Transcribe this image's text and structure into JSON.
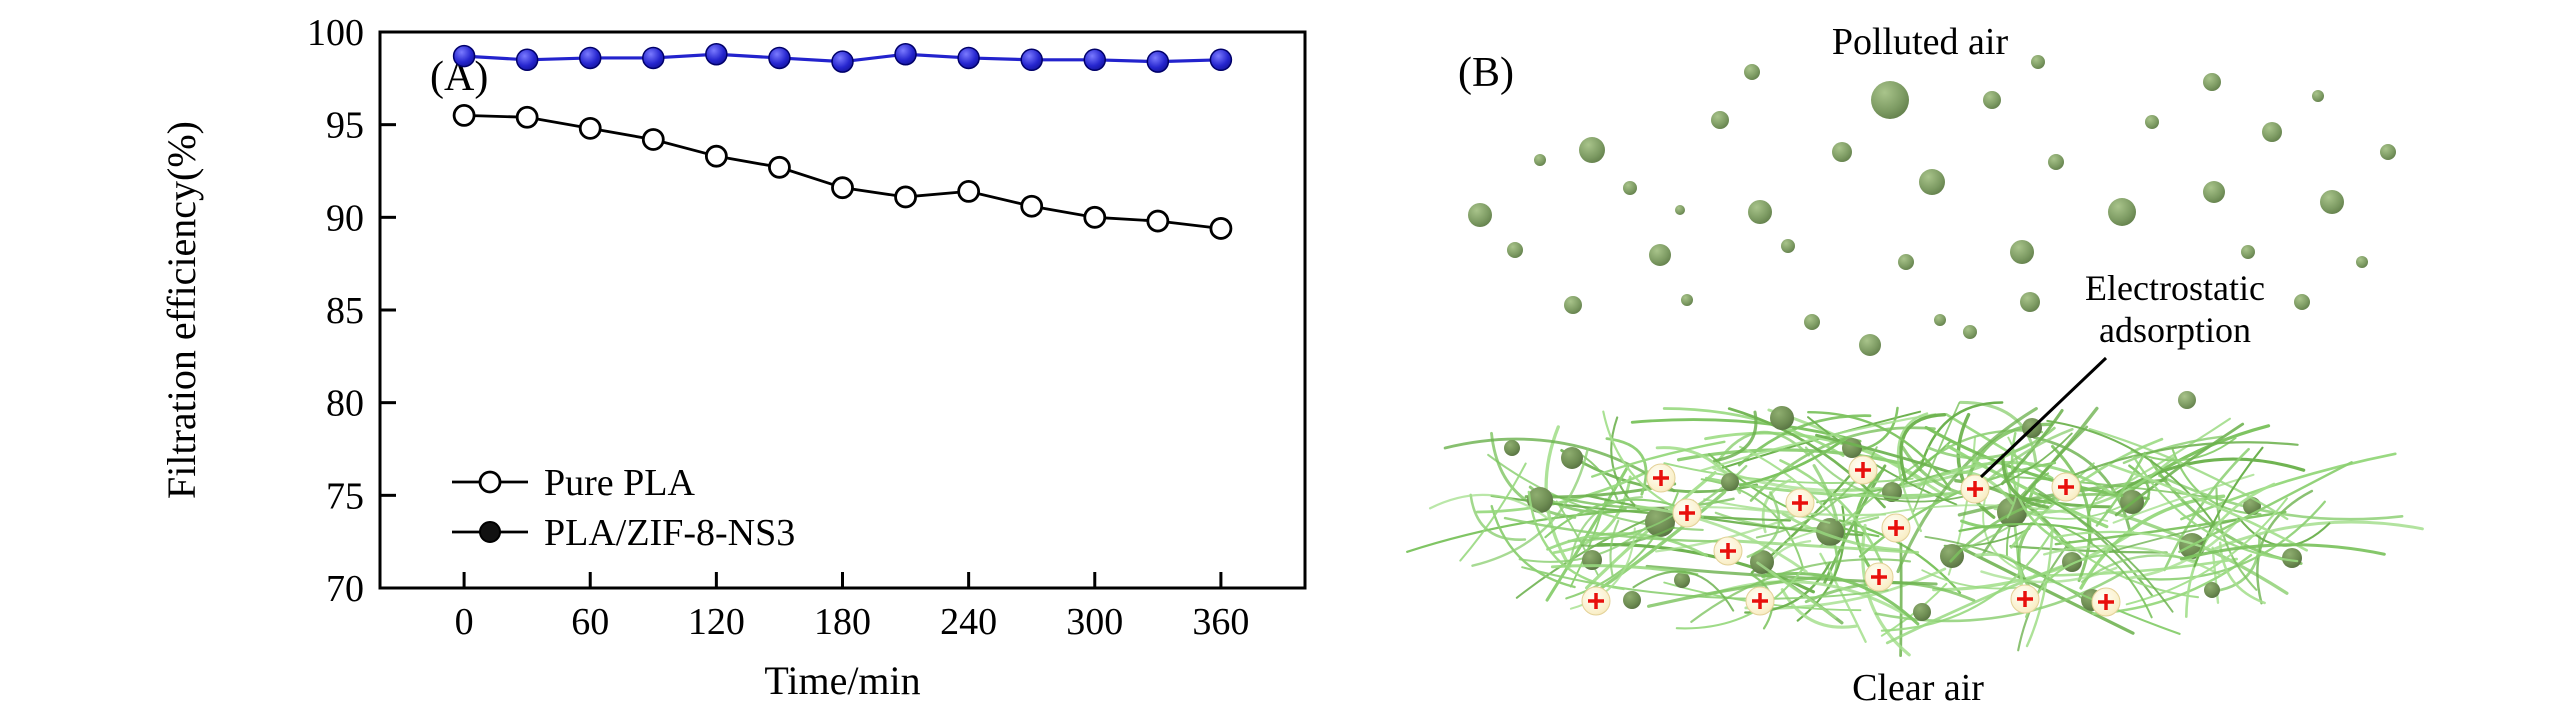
{
  "figure": {
    "panel_a": {
      "label": "(A)"
    },
    "panel_b": {
      "label": "(B)",
      "top_label": "Polluted air",
      "annotation_line1": "Electrostatic",
      "annotation_line2": "adsorption",
      "bottom_label": "Clear air"
    }
  },
  "chart_data": {
    "type": "line",
    "title": "",
    "xlabel": "Time/min",
    "ylabel": "Filtration efficiency(%)",
    "xlim": [
      -40,
      400
    ],
    "ylim": [
      70,
      100
    ],
    "xticks": [
      0,
      60,
      120,
      180,
      240,
      300,
      360
    ],
    "yticks": [
      70,
      75,
      80,
      85,
      90,
      95,
      100
    ],
    "grid": false,
    "legend_position": "lower-left",
    "x": [
      0,
      30,
      60,
      90,
      120,
      150,
      180,
      210,
      240,
      270,
      300,
      330,
      360
    ],
    "series": [
      {
        "name": "Pure PLA",
        "marker": "open-circle",
        "color": "#000000",
        "values": [
          95.5,
          95.4,
          94.8,
          94.2,
          93.3,
          92.7,
          91.6,
          91.1,
          91.4,
          90.6,
          90.0,
          89.8,
          89.4
        ]
      },
      {
        "name": "PLA/ZIF-8-NS3",
        "marker": "filled-circle",
        "color": "#2323cd",
        "values": [
          98.7,
          98.5,
          98.6,
          98.6,
          98.8,
          98.6,
          98.4,
          98.8,
          98.6,
          98.5,
          98.5,
          98.4,
          98.5
        ]
      }
    ]
  },
  "colors": {
    "axis": "#000000",
    "pure_pla_line": "#000000",
    "zif_line": "#2323cd",
    "zif_marker_fill": "#2a2ad4",
    "legend_filled_marker": "#111111",
    "particle_green": "#7d9b63",
    "fiber_green": "#8ccf72",
    "charge_fill": "#fbf2cd",
    "plus_red": "#e8100c"
  }
}
